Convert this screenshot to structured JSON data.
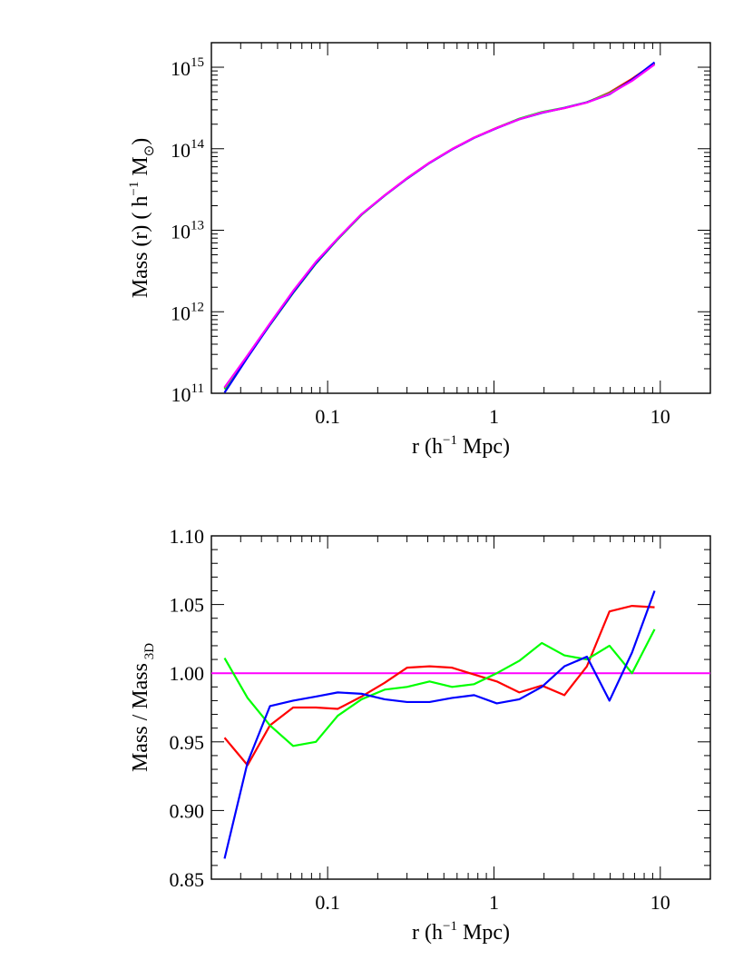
{
  "chart_data": [
    {
      "type": "line",
      "xscale": "log",
      "yscale": "log",
      "xlim": [
        0.02,
        20
      ],
      "ylim": [
        100000000000.0,
        2000000000000000.0
      ],
      "xticks": [
        {
          "value": 0.1,
          "label": "0.1"
        },
        {
          "value": 1,
          "label": "1"
        },
        {
          "value": 10,
          "label": "10"
        }
      ],
      "yticks": [
        {
          "value": 100000000000.0,
          "base": "10",
          "exp": "11"
        },
        {
          "value": 1000000000000.0,
          "base": "10",
          "exp": "12"
        },
        {
          "value": 10000000000000.0,
          "base": "10",
          "exp": "13"
        },
        {
          "value": 100000000000000.0,
          "base": "10",
          "exp": "14"
        },
        {
          "value": 1000000000000000.0,
          "base": "10",
          "exp": "15"
        }
      ],
      "xlabel": {
        "pre": "r (h",
        "sup": "−1",
        "post": " Mpc)"
      },
      "ylabel": {
        "pre": "Mass (r)  ( h",
        "sup": "−1",
        "mid": " M",
        "sub": "⊙",
        "post": ")"
      },
      "grid": false,
      "series": [
        {
          "color": "#ff0000",
          "x": [
            0.024,
            0.033,
            0.045,
            0.062,
            0.085,
            0.115,
            0.16,
            0.22,
            0.3,
            0.41,
            0.56,
            0.76,
            1.04,
            1.42,
            1.94,
            2.65,
            3.62,
            4.95,
            6.76,
            9.24
          ],
          "y": [
            115000000000.0,
            290000000000.0,
            700000000000.0,
            1720000000000.0,
            3950000000000.0,
            7800000000000.0,
            15600000000000.0,
            26800000000000.0,
            43500000000000.0,
            67500000000000.0,
            99000000000000.0,
            137000000000000.0,
            181000000000000.0,
            232000000000000.0,
            278000000000000.0,
            315000000000000.0,
            370000000000000.0,
            490000000000000.0,
            720000000000000.0,
            1120000000000000.0
          ]
        },
        {
          "color": "#00ff00",
          "x": [
            0.024,
            0.033,
            0.045,
            0.062,
            0.085,
            0.115,
            0.16,
            0.22,
            0.3,
            0.41,
            0.56,
            0.76,
            1.04,
            1.42,
            1.94,
            2.65,
            3.62,
            4.95,
            6.76,
            9.24
          ],
          "y": [
            112000000000.0,
            285000000000.0,
            690000000000.0,
            1700000000000.0,
            3900000000000.0,
            7750000000000.0,
            15500000000000.0,
            26600000000000.0,
            43000000000000.0,
            67000000000000.0,
            98500000000000.0,
            136000000000000.0,
            180000000000000.0,
            234000000000000.0,
            282000000000000.0,
            318000000000000.0,
            372000000000000.0,
            480000000000000.0,
            690000000000000.0,
            1100000000000000.0
          ]
        },
        {
          "color": "#0000ff",
          "x": [
            0.024,
            0.033,
            0.045,
            0.062,
            0.085,
            0.115,
            0.16,
            0.22,
            0.3,
            0.41,
            0.56,
            0.76,
            1.04,
            1.42,
            1.94,
            2.65,
            3.62,
            4.95,
            6.76,
            9.24
          ],
          "y": [
            102000000000.0,
            275000000000.0,
            695000000000.0,
            1720000000000.0,
            3950000000000.0,
            7850000000000.0,
            15700000000000.0,
            26600000000000.0,
            43000000000000.0,
            67000000000000.0,
            98000000000000.0,
            136000000000000.0,
            179000000000000.0,
            230000000000000.0,
            275000000000000.0,
            317000000000000.0,
            371000000000000.0,
            465000000000000.0,
            700000000000000.0,
            1150000000000000.0
          ]
        },
        {
          "color": "#ff00ff",
          "x": [
            0.024,
            0.033,
            0.045,
            0.062,
            0.085,
            0.115,
            0.16,
            0.22,
            0.3,
            0.41,
            0.56,
            0.76,
            1.04,
            1.42,
            1.94,
            2.65,
            3.62,
            4.95,
            6.76,
            9.24
          ],
          "y": [
            118000000000.0,
            292000000000.0,
            720000000000.0,
            1800000000000.0,
            4100000000000.0,
            7950000000000.0,
            15800000000000.0,
            26800000000000.0,
            43500000000000.0,
            67500000000000.0,
            99000000000000.0,
            137000000000000.0,
            180000000000000.0,
            230000000000000.0,
            278000000000000.0,
            315000000000000.0,
            368000000000000.0,
            470000000000000.0,
            680000000000000.0,
            1080000000000000.0
          ]
        }
      ]
    },
    {
      "type": "line",
      "xscale": "log",
      "yscale": "linear",
      "xlim": [
        0.02,
        20
      ],
      "ylim": [
        0.85,
        1.1
      ],
      "xticks": [
        {
          "value": 0.1,
          "label": "0.1"
        },
        {
          "value": 1,
          "label": "1"
        },
        {
          "value": 10,
          "label": "10"
        }
      ],
      "yticks": [
        {
          "value": 0.85,
          "label": "0.85"
        },
        {
          "value": 0.9,
          "label": "0.90"
        },
        {
          "value": 0.95,
          "label": "0.95"
        },
        {
          "value": 1.0,
          "label": "1.00"
        },
        {
          "value": 1.05,
          "label": "1.05"
        },
        {
          "value": 1.1,
          "label": "1.10"
        }
      ],
      "xlabel": {
        "pre": "r (h",
        "sup": "−1",
        "post": " Mpc)"
      },
      "ylabel": {
        "pre": "Mass / Mass",
        "sub": " 3D"
      },
      "grid": false,
      "hline": {
        "y": 1.0,
        "color": "#ff00ff"
      },
      "series": [
        {
          "color": "#ff0000",
          "x": [
            0.024,
            0.033,
            0.045,
            0.062,
            0.085,
            0.115,
            0.16,
            0.22,
            0.3,
            0.41,
            0.56,
            0.76,
            1.04,
            1.42,
            1.94,
            2.65,
            3.62,
            4.95,
            6.76,
            9.24
          ],
          "y": [
            0.953,
            0.933,
            0.962,
            0.975,
            0.975,
            0.974,
            0.983,
            0.993,
            1.004,
            1.005,
            1.004,
            0.999,
            0.994,
            0.986,
            0.991,
            0.984,
            1.005,
            1.045,
            1.049,
            1.048
          ]
        },
        {
          "color": "#00ff00",
          "x": [
            0.024,
            0.033,
            0.045,
            0.062,
            0.085,
            0.115,
            0.16,
            0.22,
            0.3,
            0.41,
            0.56,
            0.76,
            1.04,
            1.42,
            1.94,
            2.65,
            3.62,
            4.95,
            6.76,
            9.24
          ],
          "y": [
            1.011,
            0.982,
            0.962,
            0.947,
            0.95,
            0.969,
            0.981,
            0.988,
            0.99,
            0.994,
            0.99,
            0.992,
            1.0,
            1.009,
            1.022,
            1.013,
            1.01,
            1.02,
            1.0,
            1.032
          ]
        },
        {
          "color": "#0000ff",
          "x": [
            0.024,
            0.033,
            0.045,
            0.062,
            0.085,
            0.115,
            0.16,
            0.22,
            0.3,
            0.41,
            0.56,
            0.76,
            1.04,
            1.42,
            1.94,
            2.65,
            3.62,
            4.95,
            6.76,
            9.24
          ],
          "y": [
            0.865,
            0.935,
            0.976,
            0.98,
            0.983,
            0.986,
            0.985,
            0.981,
            0.979,
            0.979,
            0.982,
            0.984,
            0.978,
            0.981,
            0.99,
            1.005,
            1.012,
            0.98,
            1.015,
            1.06
          ]
        }
      ]
    }
  ]
}
